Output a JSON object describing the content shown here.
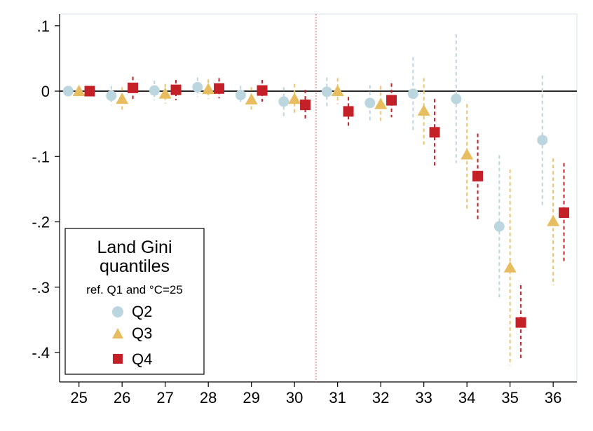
{
  "chart_data": {
    "type": "scatter",
    "x": [
      25,
      26,
      27,
      28,
      29,
      30,
      31,
      32,
      33,
      34,
      35,
      36
    ],
    "x_tick_labels": [
      "25",
      "26",
      "27",
      "28",
      "29",
      "30",
      "31",
      "32",
      "33",
      "34",
      "35",
      "36"
    ],
    "y_ticks": [
      0.1,
      0,
      -0.1,
      -0.2,
      -0.3,
      -0.4
    ],
    "y_tick_labels": [
      ".1",
      "0",
      "-.1",
      "-.2",
      "-.3",
      "-.4"
    ],
    "xlim": [
      24.55,
      36.55
    ],
    "ylim": [
      -0.445,
      0.118
    ],
    "reference_line_y": 0,
    "vertical_reference_x": 30.5,
    "grid": false,
    "legend": {
      "title_lines": [
        "Land Gini",
        "quantiles"
      ],
      "subtitle": "ref. Q1 and °C=25",
      "placement": "bottom-left"
    },
    "series": [
      {
        "name": "Q2",
        "marker": "circle",
        "color": "#bcd6e0",
        "offset": -0.25,
        "values": [
          0.0,
          -0.007,
          0.001,
          0.006,
          -0.006,
          -0.016,
          -0.001,
          -0.018,
          -0.004,
          -0.012,
          -0.207,
          -0.075
        ],
        "ci_low": [
          0.0,
          -0.022,
          -0.014,
          -0.009,
          -0.02,
          -0.038,
          -0.025,
          -0.045,
          -0.063,
          -0.11,
          -0.318,
          -0.175
        ],
        "ci_high": [
          0.0,
          0.008,
          0.016,
          0.021,
          0.008,
          0.006,
          0.021,
          0.009,
          0.052,
          0.087,
          -0.098,
          0.024
        ]
      },
      {
        "name": "Q3",
        "marker": "triangle",
        "color": "#e8bd5f",
        "offset": 0,
        "values": [
          0.0,
          -0.012,
          -0.004,
          0.003,
          -0.013,
          -0.012,
          0.0,
          -0.02,
          -0.03,
          -0.097,
          -0.27,
          -0.199
        ],
        "ci_low": [
          0.0,
          -0.03,
          -0.019,
          -0.012,
          -0.032,
          -0.035,
          -0.02,
          -0.048,
          -0.083,
          -0.18,
          -0.42,
          -0.297
        ],
        "ci_high": [
          0.0,
          0.006,
          0.011,
          0.018,
          0.006,
          0.011,
          0.02,
          0.008,
          0.02,
          -0.02,
          -0.12,
          -0.103
        ]
      },
      {
        "name": "Q4",
        "marker": "square",
        "color": "#c42027",
        "offset": 0.25,
        "values": [
          0.0,
          0.005,
          0.002,
          0.004,
          0.001,
          -0.021,
          -0.031,
          -0.014,
          -0.063,
          -0.13,
          -0.354,
          -0.186
        ],
        "ci_low": [
          0.0,
          -0.012,
          -0.014,
          -0.011,
          -0.016,
          -0.044,
          -0.055,
          -0.04,
          -0.114,
          -0.196,
          -0.41,
          -0.26
        ],
        "ci_high": [
          0.0,
          0.022,
          0.017,
          0.02,
          0.017,
          0.002,
          -0.009,
          0.012,
          -0.012,
          -0.065,
          -0.297,
          -0.11
        ]
      }
    ]
  }
}
